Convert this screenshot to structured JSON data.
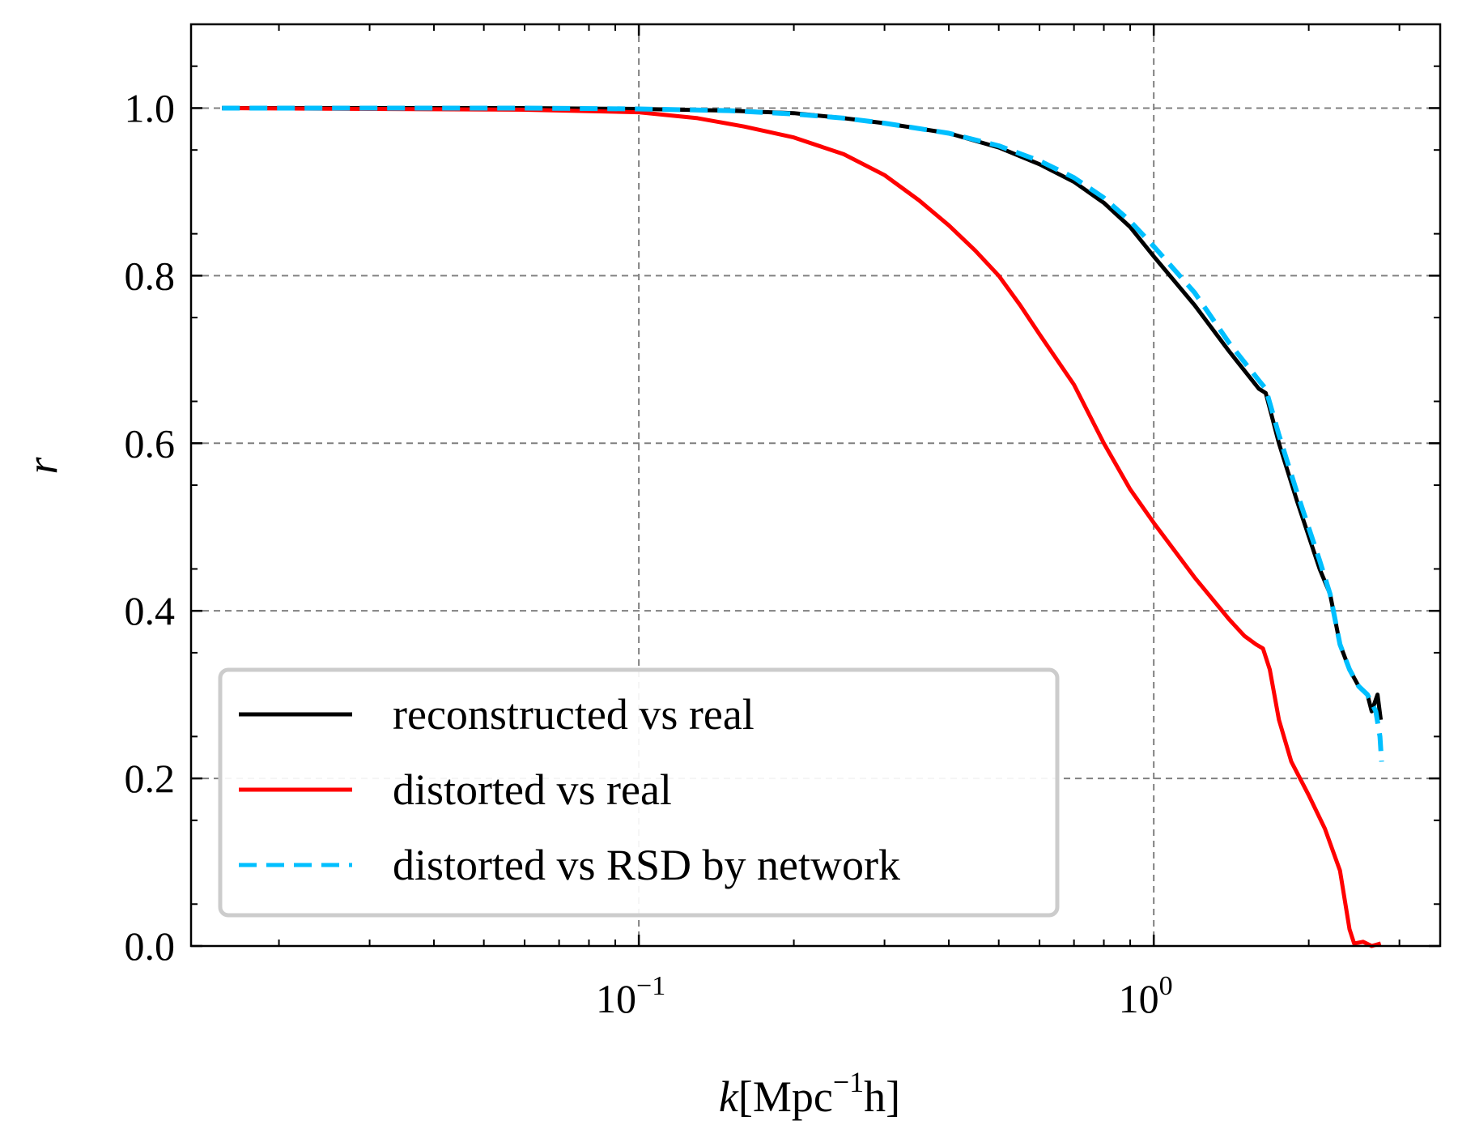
{
  "chart_data": {
    "type": "line",
    "xscale": "log",
    "xlim": [
      0.0135,
      3.6
    ],
    "ylim": [
      0.0,
      1.1
    ],
    "xlabel_main": "k",
    "xlabel_unit_pre": "[Mpc",
    "xlabel_unit_sup": "−1",
    "xlabel_unit_post": "h]",
    "ylabel": "r",
    "x_ticks": [
      {
        "value": 0.1,
        "base": "10",
        "exp": "−1"
      },
      {
        "value": 1.0,
        "base": "10",
        "exp": "0"
      }
    ],
    "y_ticks": [
      {
        "value": 0.0,
        "label": "0.0"
      },
      {
        "value": 0.2,
        "label": "0.2"
      },
      {
        "value": 0.4,
        "label": "0.4"
      },
      {
        "value": 0.6,
        "label": "0.6"
      },
      {
        "value": 0.8,
        "label": "0.8"
      },
      {
        "value": 1.0,
        "label": "1.0"
      }
    ],
    "grid": true,
    "legend_position": "lower-left",
    "series": [
      {
        "name": "reconstructed vs real",
        "color": "#000000",
        "dash": "solid",
        "points": [
          [
            0.0155,
            1.0
          ],
          [
            0.03,
            1.0
          ],
          [
            0.06,
            1.0
          ],
          [
            0.1,
            0.999
          ],
          [
            0.15,
            0.997
          ],
          [
            0.2,
            0.994
          ],
          [
            0.25,
            0.988
          ],
          [
            0.3,
            0.982
          ],
          [
            0.4,
            0.97
          ],
          [
            0.5,
            0.953
          ],
          [
            0.6,
            0.933
          ],
          [
            0.7,
            0.912
          ],
          [
            0.8,
            0.887
          ],
          [
            0.9,
            0.858
          ],
          [
            1.0,
            0.823
          ],
          [
            1.2,
            0.765
          ],
          [
            1.4,
            0.71
          ],
          [
            1.6,
            0.665
          ],
          [
            1.65,
            0.66
          ],
          [
            1.75,
            0.6
          ],
          [
            1.9,
            0.53
          ],
          [
            2.1,
            0.45
          ],
          [
            2.2,
            0.42
          ],
          [
            2.3,
            0.36
          ],
          [
            2.4,
            0.33
          ],
          [
            2.5,
            0.31
          ],
          [
            2.6,
            0.3
          ],
          [
            2.65,
            0.28
          ],
          [
            2.72,
            0.3
          ],
          [
            2.76,
            0.27
          ]
        ]
      },
      {
        "name": "distorted vs real",
        "color": "#ff0000",
        "dash": "solid",
        "points": [
          [
            0.0155,
            1.0
          ],
          [
            0.03,
            0.999
          ],
          [
            0.06,
            0.998
          ],
          [
            0.1,
            0.995
          ],
          [
            0.13,
            0.988
          ],
          [
            0.16,
            0.978
          ],
          [
            0.2,
            0.965
          ],
          [
            0.25,
            0.945
          ],
          [
            0.3,
            0.92
          ],
          [
            0.35,
            0.89
          ],
          [
            0.4,
            0.86
          ],
          [
            0.45,
            0.83
          ],
          [
            0.5,
            0.8
          ],
          [
            0.55,
            0.765
          ],
          [
            0.6,
            0.73
          ],
          [
            0.7,
            0.67
          ],
          [
            0.8,
            0.6
          ],
          [
            0.9,
            0.545
          ],
          [
            1.0,
            0.505
          ],
          [
            1.2,
            0.44
          ],
          [
            1.4,
            0.39
          ],
          [
            1.5,
            0.37
          ],
          [
            1.58,
            0.36
          ],
          [
            1.63,
            0.355
          ],
          [
            1.68,
            0.33
          ],
          [
            1.75,
            0.27
          ],
          [
            1.85,
            0.22
          ],
          [
            2.0,
            0.18
          ],
          [
            2.15,
            0.14
          ],
          [
            2.3,
            0.09
          ],
          [
            2.4,
            0.02
          ],
          [
            2.45,
            0.003
          ],
          [
            2.55,
            0.005
          ],
          [
            2.65,
            0.0
          ],
          [
            2.76,
            0.003
          ]
        ]
      },
      {
        "name": "distorted vs RSD by network",
        "color": "#00bfff",
        "dash": "dashed",
        "points": [
          [
            0.0155,
            1.0
          ],
          [
            0.03,
            1.0
          ],
          [
            0.06,
            1.0
          ],
          [
            0.1,
            0.999
          ],
          [
            0.15,
            0.997
          ],
          [
            0.2,
            0.993
          ],
          [
            0.25,
            0.988
          ],
          [
            0.3,
            0.982
          ],
          [
            0.4,
            0.97
          ],
          [
            0.5,
            0.955
          ],
          [
            0.6,
            0.937
          ],
          [
            0.7,
            0.917
          ],
          [
            0.8,
            0.893
          ],
          [
            0.9,
            0.865
          ],
          [
            1.0,
            0.835
          ],
          [
            1.2,
            0.78
          ],
          [
            1.4,
            0.72
          ],
          [
            1.6,
            0.675
          ],
          [
            1.65,
            0.665
          ],
          [
            1.75,
            0.61
          ],
          [
            1.9,
            0.54
          ],
          [
            2.1,
            0.46
          ],
          [
            2.2,
            0.42
          ],
          [
            2.3,
            0.36
          ],
          [
            2.4,
            0.33
          ],
          [
            2.5,
            0.31
          ],
          [
            2.6,
            0.3
          ],
          [
            2.7,
            0.28
          ],
          [
            2.75,
            0.25
          ],
          [
            2.77,
            0.22
          ]
        ]
      }
    ]
  }
}
